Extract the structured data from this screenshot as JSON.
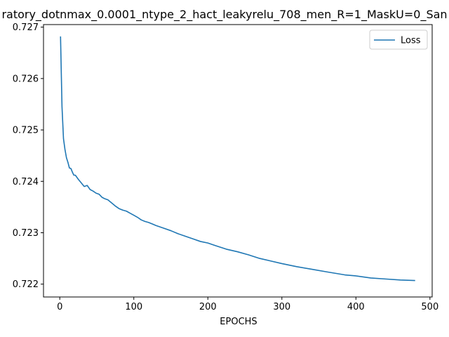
{
  "chart_data": {
    "type": "line",
    "title": "ratory_dotnmax_0.0001_ntype_2_hact_leakyrelu_708_men_R=1_MaskU=0_San",
    "xlabel": "EPOCHS",
    "ylabel": "",
    "xlim": [
      -22,
      503
    ],
    "ylim": [
      0.72175,
      0.72705
    ],
    "xticks": [
      0,
      100,
      200,
      300,
      400,
      500
    ],
    "yticks": [
      0.722,
      0.723,
      0.724,
      0.725,
      0.726,
      0.727
    ],
    "xtick_labels": [
      "0",
      "100",
      "200",
      "300",
      "400",
      "500"
    ],
    "ytick_labels": [
      "0.722",
      "0.723",
      "0.724",
      "0.725",
      "0.726",
      "0.727"
    ],
    "grid": false,
    "legend_position": "top-right",
    "series": [
      {
        "name": "Loss",
        "color": "#1f77b4",
        "x": [
          1,
          3,
          5,
          7,
          9,
          11,
          13,
          15,
          17,
          19,
          21,
          25,
          29,
          33,
          37,
          41,
          45,
          49,
          53,
          57,
          61,
          65,
          70,
          75,
          80,
          85,
          90,
          95,
          100,
          105,
          110,
          115,
          120,
          125,
          130,
          140,
          150,
          160,
          170,
          180,
          190,
          200,
          210,
          225,
          240,
          255,
          270,
          285,
          300,
          320,
          340,
          360,
          385,
          400,
          420,
          440,
          460,
          480
        ],
        "y": [
          0.72682,
          0.72545,
          0.72483,
          0.72462,
          0.72446,
          0.72437,
          0.72426,
          0.72425,
          0.72418,
          0.72412,
          0.72412,
          0.72404,
          0.72397,
          0.7239,
          0.72392,
          0.72384,
          0.72381,
          0.72377,
          0.72375,
          0.72369,
          0.72366,
          0.72364,
          0.72358,
          0.72352,
          0.72347,
          0.72344,
          0.72342,
          0.72338,
          0.72334,
          0.7233,
          0.72325,
          0.72322,
          0.7232,
          0.72317,
          0.72314,
          0.72309,
          0.72304,
          0.72298,
          0.72293,
          0.72288,
          0.72283,
          0.7228,
          0.72275,
          0.72268,
          0.72263,
          0.72257,
          0.7225,
          0.72245,
          0.7224,
          0.72234,
          0.72229,
          0.72224,
          0.72218,
          0.72216,
          0.72212,
          0.7221,
          0.72208,
          0.72207
        ]
      }
    ]
  }
}
